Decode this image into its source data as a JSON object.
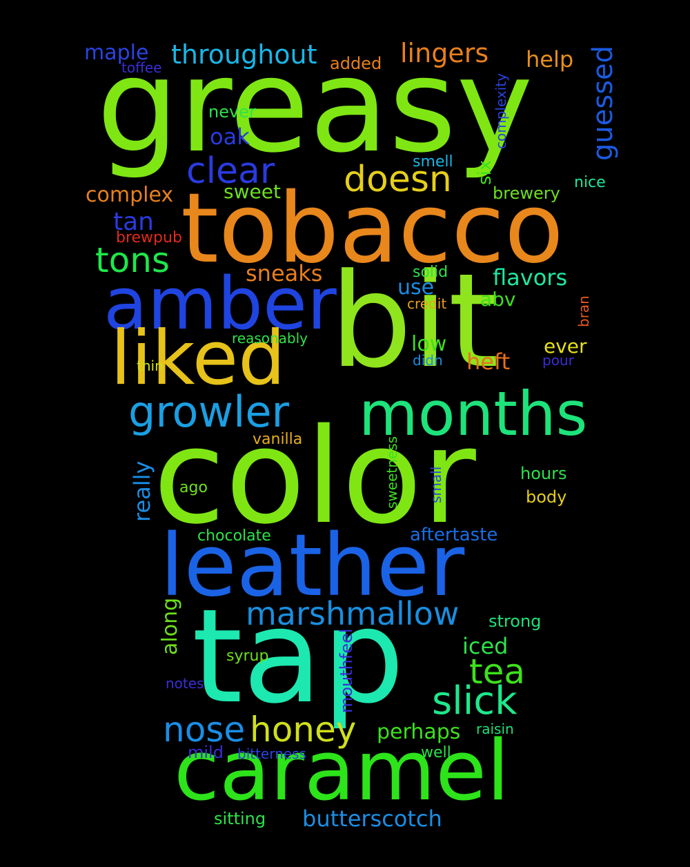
{
  "background_color": "#000000",
  "words": [
    {
      "text": "greasy",
      "color": "#7fe614",
      "rotated": false
    },
    {
      "text": "tobacco",
      "color": "#e8871c",
      "rotated": false
    },
    {
      "text": "bit",
      "color": "#8fe41e",
      "rotated": false
    },
    {
      "text": "color",
      "color": "#7fe614",
      "rotated": false
    },
    {
      "text": "tap",
      "color": "#1de8b0",
      "rotated": false
    },
    {
      "text": "amber",
      "color": "#1f44e0",
      "rotated": false
    },
    {
      "text": "leather",
      "color": "#1b63e6",
      "rotated": false
    },
    {
      "text": "liked",
      "color": "#e6c21a",
      "rotated": false
    },
    {
      "text": "caramel",
      "color": "#2de31a",
      "rotated": false
    },
    {
      "text": "months",
      "color": "#1de37a",
      "rotated": false
    },
    {
      "text": "growler",
      "color": "#1a9fe3",
      "rotated": false
    },
    {
      "text": "marshmallow",
      "color": "#1a8ee0",
      "rotated": false
    },
    {
      "text": "honey",
      "color": "#cfe01c",
      "rotated": false
    },
    {
      "text": "nose",
      "color": "#1a8ee6",
      "rotated": false
    },
    {
      "text": "slick",
      "color": "#1ee88c",
      "rotated": false
    },
    {
      "text": "tea",
      "color": "#3ee01c",
      "rotated": false
    },
    {
      "text": "clear",
      "color": "#2a3be0",
      "rotated": false
    },
    {
      "text": "tons",
      "color": "#1ee84a",
      "rotated": false
    },
    {
      "text": "doesn",
      "color": "#e6cf1a",
      "rotated": false
    },
    {
      "text": "throughout",
      "color": "#1ab6e6",
      "rotated": false
    },
    {
      "text": "lingers",
      "color": "#e8801c",
      "rotated": false
    },
    {
      "text": "help",
      "color": "#e8901c",
      "rotated": false
    },
    {
      "text": "guessed",
      "color": "#1c5ae0",
      "rotated": true
    },
    {
      "text": "maple",
      "color": "#2a44e0",
      "rotated": false
    },
    {
      "text": "toffee",
      "color": "#3a2ed8",
      "rotated": false
    },
    {
      "text": "added",
      "color": "#e8801c",
      "rotated": false
    },
    {
      "text": "complexity",
      "color": "#2a44e0",
      "rotated": true
    },
    {
      "text": "never",
      "color": "#2de34a",
      "rotated": false
    },
    {
      "text": "oak",
      "color": "#2a3be0",
      "rotated": false
    },
    {
      "text": "smell",
      "color": "#1ab6e6",
      "rotated": false
    },
    {
      "text": "six",
      "color": "#3ee01c",
      "rotated": true
    },
    {
      "text": "nice",
      "color": "#1de8a0",
      "rotated": false
    },
    {
      "text": "brewery",
      "color": "#6ee01c",
      "rotated": false
    },
    {
      "text": "complex",
      "color": "#e8801c",
      "rotated": false
    },
    {
      "text": "sweet",
      "color": "#6ee01c",
      "rotated": false
    },
    {
      "text": "tan",
      "color": "#2a3be0",
      "rotated": false
    },
    {
      "text": "brewpub",
      "color": "#e02a1a",
      "rotated": false
    },
    {
      "text": "sneaks",
      "color": "#e8801c",
      "rotated": false
    },
    {
      "text": "solid",
      "color": "#2de34a",
      "rotated": false
    },
    {
      "text": "flavors",
      "color": "#1de8a0",
      "rotated": false
    },
    {
      "text": "use",
      "color": "#1a8ee6",
      "rotated": false
    },
    {
      "text": "credit",
      "color": "#e8a01c",
      "rotated": false
    },
    {
      "text": "abv",
      "color": "#3ee01c",
      "rotated": false
    },
    {
      "text": "bran",
      "color": "#e85a1c",
      "rotated": true
    },
    {
      "text": "reasonably",
      "color": "#2de34a",
      "rotated": false
    },
    {
      "text": "low",
      "color": "#3ee01c",
      "rotated": false
    },
    {
      "text": "ever",
      "color": "#e6e01a",
      "rotated": false
    },
    {
      "text": "thin",
      "color": "#cfe01c",
      "rotated": false
    },
    {
      "text": "didn",
      "color": "#1a8ee6",
      "rotated": false
    },
    {
      "text": "heft",
      "color": "#e8701c",
      "rotated": false
    },
    {
      "text": "pour",
      "color": "#3a2ed8",
      "rotated": false
    },
    {
      "text": "vanilla",
      "color": "#e8b01c",
      "rotated": false
    },
    {
      "text": "really",
      "color": "#1a8ee6",
      "rotated": true
    },
    {
      "text": "sweetness",
      "color": "#3ee01c",
      "rotated": true
    },
    {
      "text": "small",
      "color": "#2a44e0",
      "rotated": true
    },
    {
      "text": "hours",
      "color": "#2de34a",
      "rotated": false
    },
    {
      "text": "ago",
      "color": "#6ee01c",
      "rotated": false
    },
    {
      "text": "body",
      "color": "#e6cf1a",
      "rotated": false
    },
    {
      "text": "chocolate",
      "color": "#2de34a",
      "rotated": false
    },
    {
      "text": "aftertaste",
      "color": "#1a6ee6",
      "rotated": false
    },
    {
      "text": "along",
      "color": "#6ee01c",
      "rotated": true
    },
    {
      "text": "strong",
      "color": "#1de37a",
      "rotated": false
    },
    {
      "text": "iced",
      "color": "#2de34a",
      "rotated": false
    },
    {
      "text": "mouthfeel",
      "color": "#3a2ed8",
      "rotated": true
    },
    {
      "text": "syrup",
      "color": "#6ee01c",
      "rotated": false
    },
    {
      "text": "notes",
      "color": "#3a2ed8",
      "rotated": false
    },
    {
      "text": "perhaps",
      "color": "#3ee01c",
      "rotated": false
    },
    {
      "text": "raisin",
      "color": "#1de37a",
      "rotated": false
    },
    {
      "text": "mild",
      "color": "#3a2ed8",
      "rotated": false
    },
    {
      "text": "bitterness",
      "color": "#2a44e0",
      "rotated": false
    },
    {
      "text": "well",
      "color": "#2de34a",
      "rotated": false
    },
    {
      "text": "sitting",
      "color": "#2de34a",
      "rotated": false
    },
    {
      "text": "butterscotch",
      "color": "#1a8ee6",
      "rotated": false
    }
  ]
}
